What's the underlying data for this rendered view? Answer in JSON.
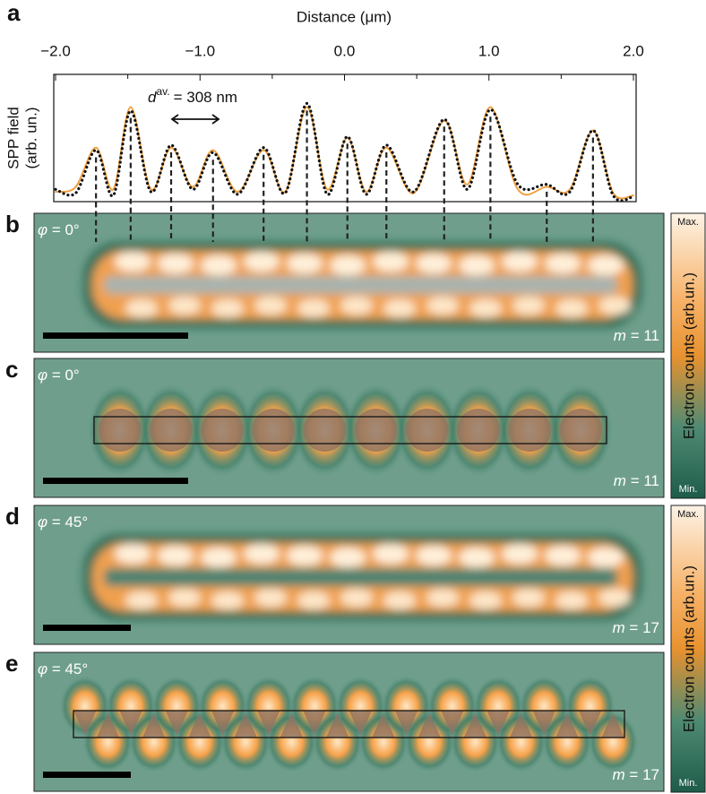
{
  "chart_data": {
    "type": "line",
    "panel": "a",
    "title": "Distance (μm)",
    "ylabel": [
      "SPP field",
      "(arb. un.)"
    ],
    "xlim": [
      -2.0,
      2.0
    ],
    "xticks": [
      {
        "value": -2.0,
        "label": "−2.0"
      },
      {
        "value": -1.0,
        "label": "−1.0"
      },
      {
        "value": 0.0,
        "label": "0.0"
      },
      {
        "value": 1.0,
        "label": "1.0"
      },
      {
        "value": 2.0,
        "label": "2.0"
      }
    ],
    "xminorticks": [
      -1.5,
      -0.5,
      0.5,
      1.5
    ],
    "ylim": [
      0,
      1
    ],
    "x": [
      -2.0,
      -1.86,
      -1.72,
      -1.6,
      -1.48,
      -1.34,
      -1.2,
      -1.05,
      -0.91,
      -0.74,
      -0.56,
      -0.41,
      -0.26,
      -0.12,
      0.02,
      0.15,
      0.29,
      0.48,
      0.69,
      0.85,
      1.01,
      1.2,
      1.4,
      1.56,
      1.72,
      1.86,
      2.0
    ],
    "series": [
      {
        "color": "#f0a040",
        "values": [
          0.08,
          0.12,
          0.44,
          0.1,
          0.77,
          0.1,
          0.44,
          0.12,
          0.42,
          0.08,
          0.42,
          0.08,
          0.77,
          0.1,
          0.52,
          0.08,
          0.44,
          0.07,
          0.66,
          0.14,
          0.77,
          0.1,
          0.12,
          0.1,
          0.58,
          0.07,
          0.05
        ]
      },
      {
        "color": "#111111",
        "dotted": true,
        "values": [
          0.1,
          0.07,
          0.42,
          0.05,
          0.74,
          0.08,
          0.46,
          0.1,
          0.4,
          0.06,
          0.44,
          0.07,
          0.8,
          0.06,
          0.53,
          0.06,
          0.46,
          0.08,
          0.67,
          0.1,
          0.75,
          0.14,
          0.14,
          0.08,
          0.58,
          0.05,
          0.04
        ]
      }
    ],
    "markers_x": [
      -1.72,
      -1.48,
      -1.2,
      -0.91,
      -0.56,
      -0.26,
      0.02,
      0.29,
      0.69,
      1.01,
      1.4,
      1.72
    ],
    "annotation": {
      "symbol": "d",
      "superscript": "av.",
      "text": "= 308 nm"
    }
  },
  "angle_symbol": "φ",
  "order_symbol": "m",
  "panels": [
    {
      "label": "b",
      "angle": " = 0°",
      "order": " = 11"
    },
    {
      "label": "c",
      "angle": " = 0°",
      "order": " = 11"
    },
    {
      "label": "d",
      "angle": " = 45°",
      "order": " = 17"
    },
    {
      "label": "e",
      "angle": " = 45°",
      "order": " = 17"
    }
  ],
  "colorbar": {
    "title": "Electron counts (arb.un.)",
    "max": "Max.",
    "min": "Min."
  }
}
